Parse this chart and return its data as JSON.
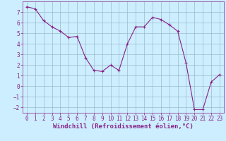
{
  "x": [
    0,
    1,
    2,
    3,
    4,
    5,
    6,
    7,
    8,
    9,
    10,
    11,
    12,
    13,
    14,
    15,
    16,
    17,
    18,
    19,
    20,
    21,
    22,
    23
  ],
  "y": [
    7.5,
    7.3,
    6.2,
    5.6,
    5.2,
    4.6,
    4.7,
    2.7,
    1.5,
    1.4,
    2.0,
    1.5,
    4.0,
    5.6,
    5.6,
    6.5,
    6.3,
    5.8,
    5.2,
    2.2,
    -2.2,
    -2.2,
    0.4,
    1.1
  ],
  "line_color": "#882288",
  "marker": "+",
  "markersize": 3.5,
  "linewidth": 0.8,
  "bg_color": "#cceeff",
  "grid_color": "#99bbcc",
  "xlabel": "Windchill (Refroidissement éolien,°C)",
  "xlabel_fontsize": 6.5,
  "xlim": [
    -0.5,
    23.5
  ],
  "ylim": [
    -2.5,
    8.0
  ],
  "yticks": [
    -2,
    -1,
    0,
    1,
    2,
    3,
    4,
    5,
    6,
    7
  ],
  "xticks": [
    0,
    1,
    2,
    3,
    4,
    5,
    6,
    7,
    8,
    9,
    10,
    11,
    12,
    13,
    14,
    15,
    16,
    17,
    18,
    19,
    20,
    21,
    22,
    23
  ],
  "tick_fontsize": 5.5,
  "tick_color": "#882288",
  "spine_color": "#882288",
  "label_color": "#882288"
}
